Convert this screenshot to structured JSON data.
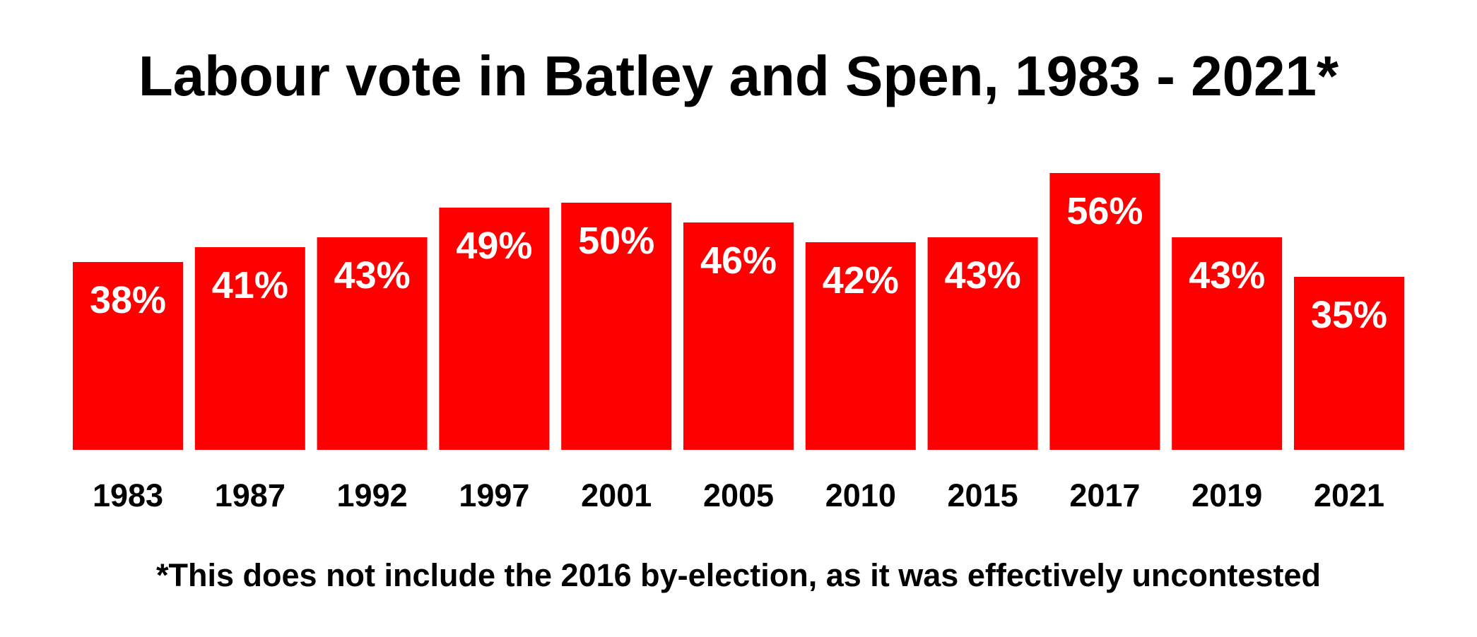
{
  "chart_data": {
    "type": "bar",
    "title": "Labour vote in Batley and Spen, 1983 - 2021*",
    "categories": [
      "1983",
      "1987",
      "1992",
      "1997",
      "2001",
      "2005",
      "2010",
      "2015",
      "2017",
      "2019",
      "2021"
    ],
    "values": [
      38,
      41,
      43,
      49,
      50,
      46,
      42,
      43,
      56,
      43,
      35
    ],
    "data_labels": [
      "38%",
      "41%",
      "43%",
      "49%",
      "50%",
      "46%",
      "42%",
      "43%",
      "56%",
      "43%",
      "35%"
    ],
    "unit": "%",
    "xlabel": "",
    "ylabel": "",
    "grid": false,
    "legend": "none",
    "bar_color": "#ff0000",
    "label_color": "#ffffff",
    "footnote": "*This does not include the 2016 by-election, as it was effectively uncontested"
  }
}
